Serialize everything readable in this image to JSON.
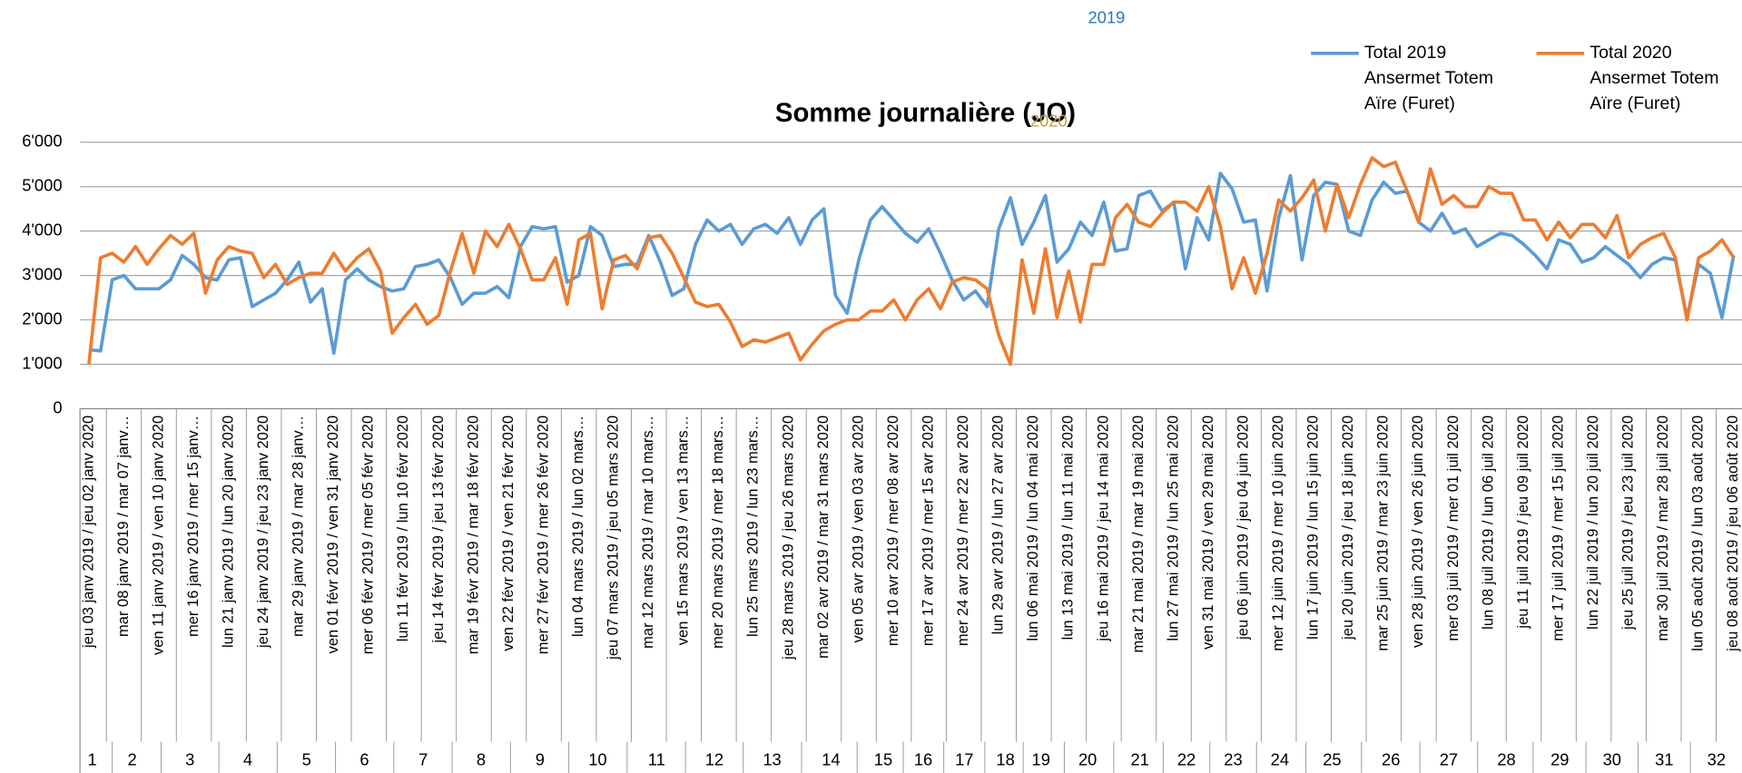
{
  "chart_data": {
    "type": "line",
    "title": "Somme journalière (JO)",
    "annotations": [
      "2019",
      "2020"
    ],
    "ylim": [
      0,
      6000
    ],
    "yticks": [
      0,
      {
        "value": 1000,
        "label": "1'000"
      },
      {
        "value": 2000,
        "label": "2'000"
      },
      {
        "value": 3000,
        "label": "3'000"
      },
      {
        "value": 4000,
        "label": "4'000"
      },
      {
        "value": 5000,
        "label": "5'000"
      },
      {
        "value": 6000,
        "label": "6'000"
      }
    ],
    "grid": true,
    "legend": "top-right",
    "weeks": [
      "1",
      "2",
      "3",
      "4",
      "5",
      "6",
      "7",
      "8",
      "9",
      "10",
      "11",
      "12",
      "13",
      "14",
      "15",
      "16",
      "17",
      "18",
      "19",
      "20",
      "21",
      "22",
      "23",
      "24",
      "25",
      "26",
      "27",
      "28",
      "29",
      "30",
      "31",
      "32"
    ],
    "categories": [
      "jeu 03 janv 2019 / jeu 02 janv 2020",
      null,
      null,
      "mar 08 janv 2019 / mar 07 janv…",
      null,
      null,
      "ven 11 janv 2019 / ven 10 janv 2020",
      null,
      null,
      "mer 16 janv 2019 / mer 15 janv…",
      null,
      null,
      "lun 21 janv 2019 / lun 20 janv 2020",
      null,
      null,
      "jeu 24 janv 2019 / jeu 23 janv 2020",
      null,
      null,
      "mar 29 janv 2019 / mar 28 janv…",
      null,
      null,
      "ven 01 févr 2019 / ven 31 janv 2020",
      null,
      null,
      "mer 06 févr 2019 / mer 05 févr 2020",
      null,
      null,
      "lun 11 févr 2019 / lun 10 févr 2020",
      null,
      null,
      "jeu 14 févr 2019 / jeu 13 févr 2020",
      null,
      null,
      "mar 19 févr 2019 / mar 18 févr 2020",
      null,
      null,
      "ven 22 févr 2019 / ven 21 févr 2020",
      null,
      null,
      "mer 27 févr 2019 / mer 26 févr 2020",
      null,
      null,
      "lun 04 mars 2019 / lun 02 mars…",
      null,
      null,
      "jeu 07 mars 2019 / jeu 05 mars 2020",
      null,
      null,
      "mar 12 mars 2019 / mar 10 mars…",
      null,
      null,
      "ven 15 mars 2019 / ven 13 mars…",
      null,
      null,
      "mer 20 mars 2019 / mer 18 mars…",
      null,
      null,
      "lun 25 mars 2019 / lun 23 mars…",
      null,
      null,
      "jeu 28 mars 2019 / jeu 26 mars 2020",
      null,
      null,
      "mar 02 avr 2019 / mar 31 mars 2020",
      null,
      null,
      "ven 05 avr 2019 / ven 03 avr 2020",
      null,
      null,
      "mer 10 avr 2019 / mer 08 avr 2020",
      null,
      null,
      "mer 17 avr 2019 / mer 15 avr 2020",
      null,
      null,
      "mer 24 avr 2019 / mer 22 avr 2020",
      null,
      null,
      "lun 29 avr 2019 / lun 27 avr 2020",
      null,
      null,
      "lun 06 mai 2019 / lun 04 mai 2020",
      null,
      null,
      "lun 13 mai 2019 / lun 11 mai 2020",
      null,
      null,
      "jeu 16 mai 2019 / jeu 14 mai 2020",
      null,
      null,
      "mar 21 mai 2019 / mar 19 mai 2020",
      null,
      null,
      "lun 27 mai 2019 / lun 25 mai 2020",
      null,
      null,
      "ven 31 mai 2019 / ven 29 mai 2020",
      null,
      null,
      "jeu 06 juin 2019 / jeu 04 juin 2020",
      null,
      null,
      "mer 12 juin 2019 / mer 10 juin 2020",
      null,
      null,
      "lun 17 juin 2019 / lun 15 juin 2020",
      null,
      null,
      "jeu 20 juin 2019 / jeu 18 juin 2020",
      null,
      null,
      "mar 25 juin 2019 / mar 23 juin 2020",
      null,
      null,
      "ven 28 juin 2019 / ven 26 juin 2020",
      null,
      null,
      "mer 03 juil 2019 / mer 01 juil 2020",
      null,
      null,
      "lun 08 juil 2019 / lun 06 juil 2020",
      null,
      null,
      "jeu 11 juil 2019 / jeu 09 juil 2020",
      null,
      null,
      "mer 17 juil 2019 / mer 15 juil 2020",
      null,
      null,
      "lun 22 juil 2019 / lun 20 juil 2020",
      null,
      null,
      "jeu 25 juil 2019 / jeu 23 juil 2020",
      null,
      null,
      "mar 30 juil 2019 / mar 28 juil 2020",
      null,
      null,
      "lun 05 août 2019 / lun 03 août 2020",
      null,
      null,
      "jeu 08 août 2019 / jeu 06 août 2020"
    ],
    "series": [
      {
        "name": "Total 2019 Ansermet Totem Aïre (Furet)",
        "color": "#5b9bd5",
        "values": [
          1330,
          1300,
          2900,
          3000,
          2700,
          2700,
          2700,
          2900,
          3450,
          3250,
          2950,
          2900,
          3350,
          3400,
          2300,
          2450,
          2600,
          2900,
          3300,
          2400,
          2700,
          1250,
          2900,
          3150,
          2900,
          2750,
          2650,
          2700,
          3200,
          3250,
          3350,
          2950,
          2350,
          2600,
          2600,
          2750,
          2500,
          3650,
          4100,
          4050,
          4100,
          2850,
          3000,
          4100,
          3900,
          3200,
          3250,
          3250,
          3900,
          3300,
          2550,
          2700,
          3700,
          4250,
          4000,
          4150,
          3700,
          4050,
          4150,
          3950,
          4300,
          3700,
          4250,
          4500,
          2550,
          2150,
          3350,
          4250,
          4550,
          4250,
          3950,
          3750,
          4050,
          3500,
          2900,
          2450,
          2650,
          2300,
          4050,
          4750,
          3700,
          4200,
          4800,
          3300,
          3600,
          4200,
          3900,
          4650,
          3550,
          3600,
          4800,
          4900,
          4450,
          4650,
          3150,
          4300,
          3800,
          5300,
          4950,
          4200,
          4250,
          2650,
          4300,
          5250,
          3350,
          4800,
          5100,
          5050,
          4000,
          3900,
          4700,
          5100,
          4850,
          4900,
          4200,
          4000,
          4400,
          3950,
          4050,
          3650,
          3800,
          3950,
          3900,
          3700,
          3450,
          3150,
          3800,
          3700,
          3300,
          3400,
          3650,
          3450,
          3250,
          2950,
          3250,
          3400,
          3350,
          2050,
          3250,
          3050,
          2050,
          3450
        ]
      },
      {
        "name": "Total 2020 Ansermet Totem Aïre (Furet)",
        "color": "#ed7d31",
        "values": [
          1000,
          3400,
          3500,
          3300,
          3650,
          3250,
          3600,
          3900,
          3700,
          3950,
          2600,
          3350,
          3650,
          3550,
          3500,
          2950,
          3250,
          2800,
          2950,
          3050,
          3050,
          3500,
          3100,
          3400,
          3600,
          3100,
          1700,
          2050,
          2350,
          1900,
          2100,
          3100,
          3950,
          3050,
          4000,
          3650,
          4150,
          3600,
          2900,
          2900,
          3400,
          2350,
          3800,
          3950,
          2250,
          3350,
          3450,
          3150,
          3850,
          3900,
          3500,
          2950,
          2400,
          2300,
          2350,
          1950,
          1400,
          1550,
          1500,
          1600,
          1700,
          1100,
          1450,
          1750,
          1900,
          2000,
          2000,
          2200,
          2200,
          2450,
          2000,
          2450,
          2700,
          2250,
          2850,
          2950,
          2900,
          2700,
          1650,
          1000,
          3350,
          2150,
          3600,
          2050,
          3100,
          1950,
          3250,
          3250,
          4300,
          4600,
          4200,
          4100,
          4400,
          4650,
          4650,
          4450,
          5000,
          4100,
          2700,
          3400,
          2600,
          3500,
          4700,
          4450,
          4750,
          5150,
          4000,
          5050,
          4300,
          5050,
          5650,
          5450,
          5550,
          4900,
          4200,
          5400,
          4600,
          4800,
          4550,
          4550,
          5000,
          4850,
          4850,
          4250,
          4250,
          3800,
          4200,
          3850,
          4150,
          4150,
          3850,
          4350,
          3400,
          3700,
          3850,
          3950,
          3400,
          2000,
          3400,
          3550,
          3800,
          3400
        ]
      }
    ]
  }
}
